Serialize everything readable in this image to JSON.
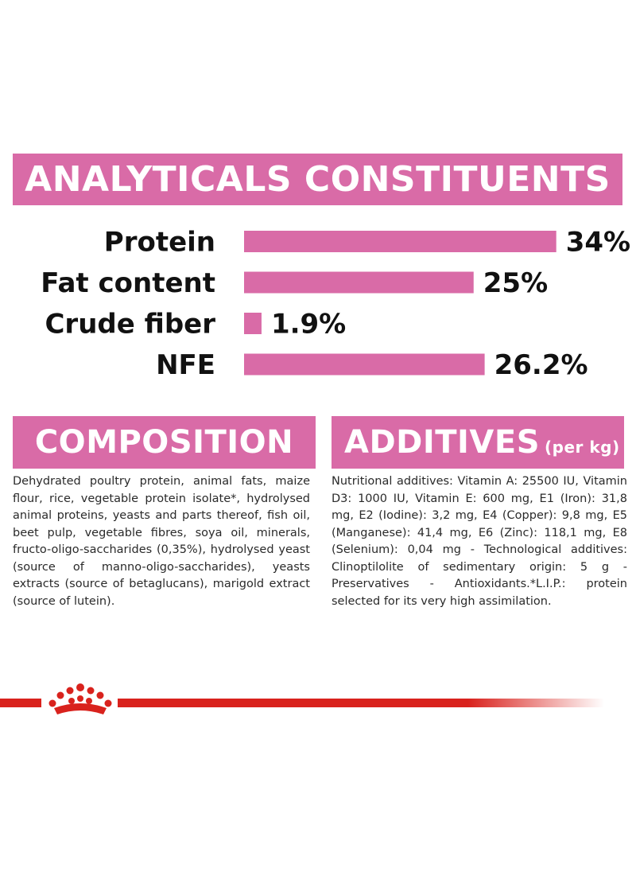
{
  "analyticals": {
    "title": "ANALYTICALS CONSTITUENTS"
  },
  "chart_data": {
    "type": "bar",
    "orientation": "horizontal",
    "title": "ANALYTICALS CONSTITUENTS",
    "categories": [
      "Protein",
      "Fat content",
      "Crude fiber",
      "NFE"
    ],
    "values": [
      34,
      25,
      1.9,
      26.2
    ],
    "value_labels": [
      "34%",
      "25%",
      "1.9%",
      "26.2%"
    ],
    "unit": "%",
    "bar_color": "#d96ba7",
    "grid": false,
    "legend": "none"
  },
  "composition": {
    "title": "COMPOSITION",
    "text": "Dehydrated poultry protein, animal fats, maize flour, rice, vegetable protein isolate*, hydrolysed animal proteins, yeasts and parts thereof, fish oil, beet pulp, vegetable fibres, soya oil, minerals, fructo-oligo-saccharides (0,35%), hydrolysed yeast (source of manno-oligo-saccharides), yeasts extracts (source of betaglucans), marigold extract (source of lutein)."
  },
  "additives": {
    "title": "ADDITIVES",
    "title_suffix": "(per kg)",
    "text": "Nutritional additives: Vitamin A: 25500 IU, Vitamin D3: 1000 IU, Vitamin E: 600 mg, E1 (Iron): 31,8 mg, E2 (Iodine): 3,2 mg, E4 (Copper): 9,8 mg, E5 (Manganese): 41,4 mg, E6 (Zinc): 118,1 mg, E8 (Selenium): 0,04 mg - Technological additives: Clinoptilolite of sedimentary origin: 5 g - Preservatives - Antioxidants.*L.I.P.: protein selected for its very high assimilation."
  },
  "brand": {
    "accent": "#d9221d",
    "logo_icon": "crown-icon"
  }
}
